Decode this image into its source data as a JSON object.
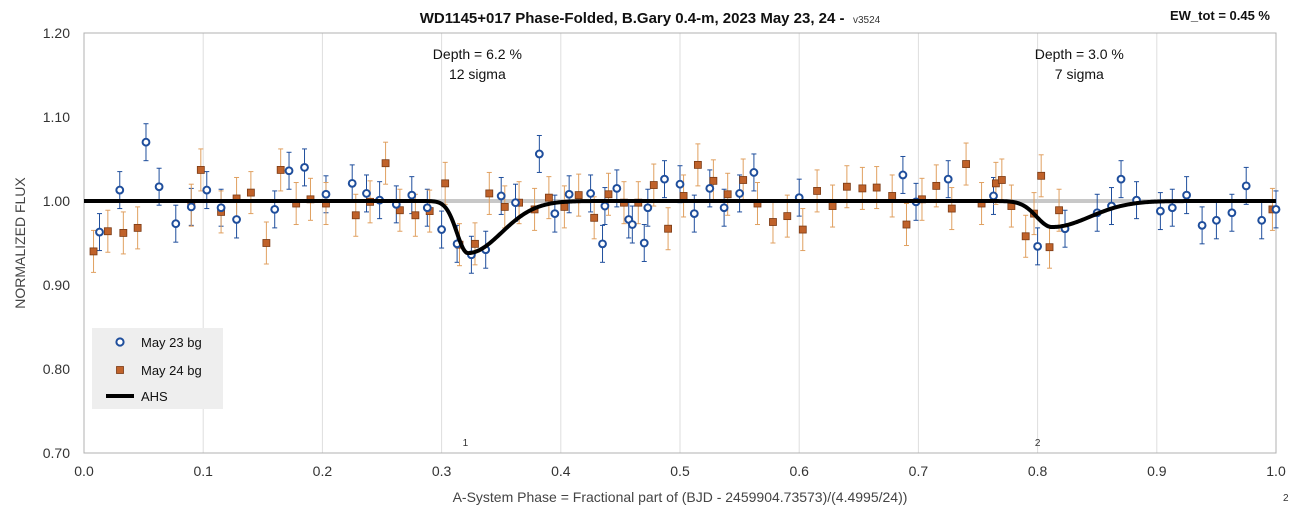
{
  "chart_data": {
    "type": "scatter",
    "title": "WD1145+017 Phase-Folded, B.Gary 0.4-m, 2023 May 23, 24 -",
    "title_version": "v3524",
    "corner_label": "EW_tot = 0.45 %",
    "xlabel": "A-System Phase = Fractional part of (BJD - 2459904.73573)/(4.4995/24))",
    "ylabel": "NORMALIZED FLUX",
    "xlim": [
      0.0,
      1.0
    ],
    "ylim": [
      0.7,
      1.2
    ],
    "x_ticks": [
      "0.0",
      "0.1",
      "0.2",
      "0.3",
      "0.4",
      "0.5",
      "0.6",
      "0.7",
      "0.8",
      "0.9",
      "1.0"
    ],
    "y_ticks": [
      "0.70",
      "0.80",
      "0.90",
      "1.00",
      "1.10",
      "1.20"
    ],
    "grid": "vertical",
    "reference_line": 1.0,
    "legend_position": "lower-left",
    "annotations": [
      {
        "x": 0.33,
        "y": 1.175,
        "lines": [
          "Depth = 6.2 %",
          "12 sigma"
        ]
      },
      {
        "x": 0.835,
        "y": 1.175,
        "lines": [
          "Depth = 3.0 %",
          "7 sigma"
        ]
      }
    ],
    "dip_markers": [
      {
        "x": 0.32,
        "y": 0.72,
        "label": "1"
      },
      {
        "x": 0.8,
        "y": 0.72,
        "label": "2"
      }
    ],
    "corner_footnote": "2",
    "model": {
      "name": "AHS",
      "color": "#000000",
      "baseline": 1.0,
      "dips": [
        {
          "center": 0.322,
          "depth": 0.062,
          "width_in": 0.013,
          "width_out": 0.04
        },
        {
          "center": 0.812,
          "depth": 0.031,
          "width_in": 0.018,
          "width_out": 0.045
        }
      ]
    },
    "series": [
      {
        "name": "May 23 bg",
        "marker": "circle",
        "color": "#1f4e9c",
        "error": 0.022,
        "points": [
          [
            0.013,
            0.963
          ],
          [
            0.03,
            1.013
          ],
          [
            0.052,
            1.07
          ],
          [
            0.063,
            1.017
          ],
          [
            0.077,
            0.973
          ],
          [
            0.09,
            0.993
          ],
          [
            0.103,
            1.013
          ],
          [
            0.115,
            0.992
          ],
          [
            0.128,
            0.978
          ],
          [
            0.16,
            0.99
          ],
          [
            0.172,
            1.036
          ],
          [
            0.185,
            1.04
          ],
          [
            0.203,
            1.008
          ],
          [
            0.225,
            1.021
          ],
          [
            0.237,
            1.009
          ],
          [
            0.248,
            1.001
          ],
          [
            0.262,
            0.996
          ],
          [
            0.275,
            1.007
          ],
          [
            0.288,
            0.992
          ],
          [
            0.3,
            0.966
          ],
          [
            0.313,
            0.949
          ],
          [
            0.325,
            0.936
          ],
          [
            0.337,
            0.942
          ],
          [
            0.35,
            1.006
          ],
          [
            0.362,
            0.998
          ],
          [
            0.382,
            1.056
          ],
          [
            0.395,
            0.985
          ],
          [
            0.407,
            1.008
          ],
          [
            0.425,
            1.009
          ],
          [
            0.435,
            0.949
          ],
          [
            0.437,
            0.994
          ],
          [
            0.447,
            1.015
          ],
          [
            0.457,
            0.978
          ],
          [
            0.46,
            0.972
          ],
          [
            0.47,
            0.95
          ],
          [
            0.473,
            0.992
          ],
          [
            0.487,
            1.026
          ],
          [
            0.5,
            1.02
          ],
          [
            0.512,
            0.985
          ],
          [
            0.525,
            1.015
          ],
          [
            0.537,
            0.992
          ],
          [
            0.55,
            1.009
          ],
          [
            0.562,
            1.034
          ],
          [
            0.6,
            1.004
          ],
          [
            0.687,
            1.031
          ],
          [
            0.698,
            0.999
          ],
          [
            0.725,
            1.026
          ],
          [
            0.763,
            1.006
          ],
          [
            0.8,
            0.946
          ],
          [
            0.823,
            0.967
          ],
          [
            0.85,
            0.986
          ],
          [
            0.862,
            0.994
          ],
          [
            0.87,
            1.026
          ],
          [
            0.883,
            1.001
          ],
          [
            0.903,
            0.988
          ],
          [
            0.913,
            0.992
          ],
          [
            0.925,
            1.007
          ],
          [
            0.938,
            0.971
          ],
          [
            0.95,
            0.977
          ],
          [
            0.963,
            0.986
          ],
          [
            0.975,
            1.018
          ],
          [
            0.988,
            0.977
          ],
          [
            1.0,
            0.99
          ]
        ]
      },
      {
        "name": "May 24 bg",
        "marker": "square",
        "color": "#c0622a",
        "error_color": "#e0a060",
        "error": 0.025,
        "points": [
          [
            0.008,
            0.94
          ],
          [
            0.02,
            0.964
          ],
          [
            0.033,
            0.962
          ],
          [
            0.045,
            0.968
          ],
          [
            0.09,
            0.995
          ],
          [
            0.098,
            1.037
          ],
          [
            0.115,
            0.987
          ],
          [
            0.128,
            1.003
          ],
          [
            0.14,
            1.01
          ],
          [
            0.153,
            0.95
          ],
          [
            0.165,
            1.037
          ],
          [
            0.178,
            0.997
          ],
          [
            0.19,
            1.002
          ],
          [
            0.203,
            0.997
          ],
          [
            0.228,
            0.983
          ],
          [
            0.24,
            0.999
          ],
          [
            0.253,
            1.045
          ],
          [
            0.265,
            0.989
          ],
          [
            0.278,
            0.983
          ],
          [
            0.29,
            0.988
          ],
          [
            0.303,
            1.021
          ],
          [
            0.315,
            0.948
          ],
          [
            0.328,
            0.949
          ],
          [
            0.34,
            1.009
          ],
          [
            0.353,
            0.993
          ],
          [
            0.365,
            0.998
          ],
          [
            0.378,
            0.99
          ],
          [
            0.39,
            1.004
          ],
          [
            0.403,
            0.993
          ],
          [
            0.415,
            1.007
          ],
          [
            0.428,
            0.98
          ],
          [
            0.44,
            1.008
          ],
          [
            0.453,
            0.998
          ],
          [
            0.465,
            0.998
          ],
          [
            0.478,
            1.019
          ],
          [
            0.49,
            0.967
          ],
          [
            0.503,
            1.006
          ],
          [
            0.515,
            1.043
          ],
          [
            0.528,
            1.024
          ],
          [
            0.54,
            1.008
          ],
          [
            0.553,
            1.025
          ],
          [
            0.565,
            0.997
          ],
          [
            0.578,
            0.975
          ],
          [
            0.59,
            0.982
          ],
          [
            0.603,
            0.966
          ],
          [
            0.615,
            1.012
          ],
          [
            0.628,
            0.994
          ],
          [
            0.64,
            1.017
          ],
          [
            0.653,
            1.015
          ],
          [
            0.665,
            1.016
          ],
          [
            0.678,
            1.006
          ],
          [
            0.69,
            0.972
          ],
          [
            0.703,
            1.002
          ],
          [
            0.715,
            1.018
          ],
          [
            0.728,
            0.991
          ],
          [
            0.74,
            1.044
          ],
          [
            0.753,
            0.997
          ],
          [
            0.765,
            1.021
          ],
          [
            0.77,
            1.025
          ],
          [
            0.778,
            0.994
          ],
          [
            0.79,
            0.958
          ],
          [
            0.797,
            0.985
          ],
          [
            0.803,
            1.03
          ],
          [
            0.81,
            0.945
          ],
          [
            0.818,
            0.989
          ],
          [
            0.997,
            0.99
          ]
        ]
      }
    ]
  }
}
